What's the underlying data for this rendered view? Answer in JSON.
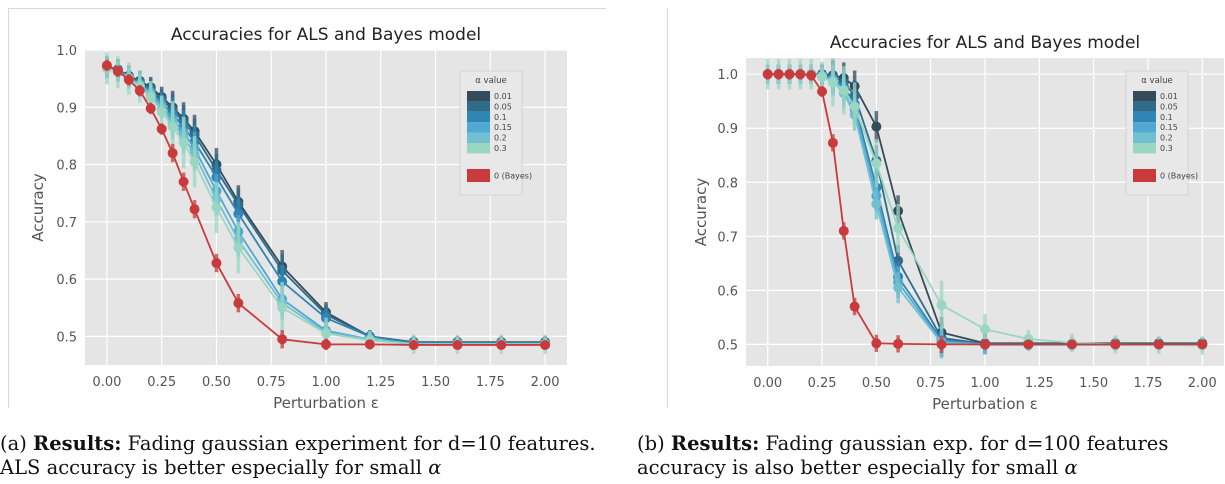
{
  "chart_data": [
    {
      "type": "line",
      "title": "Accuracies for ALS and Bayes model",
      "xlabel": "Perturbation ε",
      "ylabel": "Accuracy",
      "xlim": [
        -0.1,
        2.1
      ],
      "ylim": [
        0.45,
        1.0
      ],
      "xticks": [
        "0.00",
        "0.25",
        "0.50",
        "0.75",
        "1.00",
        "1.25",
        "1.50",
        "1.75",
        "2.00"
      ],
      "yticks": [
        "0.5",
        "0.6",
        "0.7",
        "0.8",
        "0.9",
        "1.0"
      ],
      "grid": true,
      "legend": {
        "title": "α value",
        "placement": "top-right"
      },
      "x": [
        0,
        0.05,
        0.1,
        0.15,
        0.2,
        0.25,
        0.3,
        0.35,
        0.4,
        0.5,
        0.6,
        0.8,
        1.0,
        1.2,
        1.4,
        1.6,
        1.8,
        2.0
      ],
      "series": [
        {
          "name": "0.01",
          "color": "#364b5a",
          "values": [
            0.971,
            0.966,
            0.955,
            0.946,
            0.935,
            0.918,
            0.9,
            0.88,
            0.858,
            0.8,
            0.735,
            0.622,
            0.542,
            0.5,
            0.49,
            0.49,
            0.49,
            0.49
          ]
        },
        {
          "name": "0.05",
          "color": "#2f6c8a",
          "values": [
            0.97,
            0.965,
            0.954,
            0.944,
            0.932,
            0.914,
            0.895,
            0.875,
            0.852,
            0.79,
            0.73,
            0.615,
            0.538,
            0.5,
            0.489,
            0.489,
            0.489,
            0.489
          ]
        },
        {
          "name": "0.1",
          "color": "#2f86b5",
          "values": [
            0.969,
            0.964,
            0.953,
            0.942,
            0.928,
            0.908,
            0.888,
            0.865,
            0.84,
            0.778,
            0.714,
            0.596,
            0.532,
            0.5,
            0.488,
            0.488,
            0.488,
            0.488
          ]
        },
        {
          "name": "0.15",
          "color": "#4ea9d3",
          "values": [
            0.969,
            0.963,
            0.952,
            0.94,
            0.925,
            0.903,
            0.88,
            0.856,
            0.828,
            0.754,
            0.683,
            0.565,
            0.51,
            0.495,
            0.487,
            0.487,
            0.487,
            0.487
          ]
        },
        {
          "name": "0.2",
          "color": "#71bfcf",
          "values": [
            0.968,
            0.962,
            0.951,
            0.938,
            0.922,
            0.898,
            0.873,
            0.848,
            0.818,
            0.74,
            0.668,
            0.558,
            0.507,
            0.495,
            0.487,
            0.487,
            0.487,
            0.487
          ]
        },
        {
          "name": "0.3",
          "color": "#99d7c3",
          "values": [
            0.968,
            0.961,
            0.95,
            0.936,
            0.918,
            0.892,
            0.866,
            0.838,
            0.805,
            0.725,
            0.655,
            0.55,
            0.505,
            0.493,
            0.486,
            0.486,
            0.486,
            0.486
          ]
        },
        {
          "name": "0 (Bayes)",
          "color": "#c93a3c",
          "values": [
            0.973,
            0.963,
            0.948,
            0.929,
            0.898,
            0.862,
            0.82,
            0.77,
            0.722,
            0.628,
            0.558,
            0.495,
            0.486,
            0.486,
            0.485,
            0.485,
            0.485,
            0.485
          ]
        }
      ]
    },
    {
      "type": "line",
      "title": "Accuracies for ALS and Bayes model",
      "xlabel": "Perturbation ε",
      "ylabel": "Accuracy",
      "xlim": [
        -0.1,
        2.1
      ],
      "ylim": [
        0.46,
        1.03
      ],
      "xticks": [
        "0.00",
        "0.25",
        "0.50",
        "0.75",
        "1.00",
        "1.25",
        "1.50",
        "1.75",
        "2.00"
      ],
      "yticks": [
        "0.5",
        "0.6",
        "0.7",
        "0.8",
        "0.9",
        "1.0"
      ],
      "grid": true,
      "legend": {
        "title": "α value",
        "placement": "top-right"
      },
      "x": [
        0,
        0.05,
        0.1,
        0.15,
        0.2,
        0.25,
        0.3,
        0.35,
        0.4,
        0.5,
        0.6,
        0.8,
        1.0,
        1.2,
        1.4,
        1.6,
        1.8,
        2.0
      ],
      "series": [
        {
          "name": "0.01",
          "color": "#364b5a",
          "values": [
            1.0,
            1.0,
            1.0,
            1.0,
            1.0,
            1.0,
            0.998,
            0.993,
            0.978,
            0.903,
            0.747,
            0.522,
            0.502,
            0.502,
            0.502,
            0.502,
            0.502,
            0.502
          ]
        },
        {
          "name": "0.05",
          "color": "#2f6c8a",
          "values": [
            1.0,
            1.0,
            1.0,
            1.0,
            1.0,
            0.999,
            0.996,
            0.985,
            0.96,
            0.84,
            0.655,
            0.512,
            0.501,
            0.501,
            0.501,
            0.501,
            0.501,
            0.501
          ]
        },
        {
          "name": "0.1",
          "color": "#2f86b5",
          "values": [
            1.0,
            1.0,
            1.0,
            1.0,
            1.0,
            0.998,
            0.993,
            0.978,
            0.945,
            0.79,
            0.625,
            0.508,
            0.5,
            0.5,
            0.5,
            0.5,
            0.5,
            0.5
          ]
        },
        {
          "name": "0.15",
          "color": "#4ea9d3",
          "values": [
            1.0,
            1.0,
            1.0,
            1.0,
            1.0,
            0.997,
            0.99,
            0.972,
            0.935,
            0.775,
            0.615,
            0.505,
            0.5,
            0.5,
            0.5,
            0.5,
            0.5,
            0.5
          ]
        },
        {
          "name": "0.2",
          "color": "#71bfcf",
          "values": [
            1.0,
            1.0,
            1.0,
            1.0,
            1.0,
            0.996,
            0.987,
            0.965,
            0.925,
            0.76,
            0.605,
            0.503,
            0.499,
            0.499,
            0.499,
            0.499,
            0.499,
            0.499
          ]
        },
        {
          "name": "0.3",
          "color": "#99d7c3",
          "values": [
            1.0,
            1.0,
            1.0,
            1.0,
            1.0,
            0.995,
            0.985,
            0.97,
            0.94,
            0.835,
            0.715,
            0.573,
            0.528,
            0.51,
            0.503,
            0.5,
            0.499,
            0.498
          ]
        },
        {
          "name": "0 (Bayes)",
          "color": "#c93a3c",
          "values": [
            1.0,
            1.0,
            1.0,
            1.0,
            0.998,
            0.968,
            0.873,
            0.71,
            0.57,
            0.502,
            0.501,
            0.5,
            0.5,
            0.5,
            0.5,
            0.5,
            0.5,
            0.5
          ]
        }
      ]
    }
  ],
  "captions": [
    {
      "label": "(a)",
      "heading": "Results:",
      "line1_rest": "Fading gaussian experiment for d=10 features.",
      "line2_text": "ALS accuracy is better especially for small",
      "line2_symbol": "α"
    },
    {
      "label": "(b)",
      "heading": "Results:",
      "line1_rest": "Fading gaussian exp. for d=100 features",
      "line2_text": "accuracy is also better especially for small",
      "line2_symbol": "α"
    }
  ]
}
